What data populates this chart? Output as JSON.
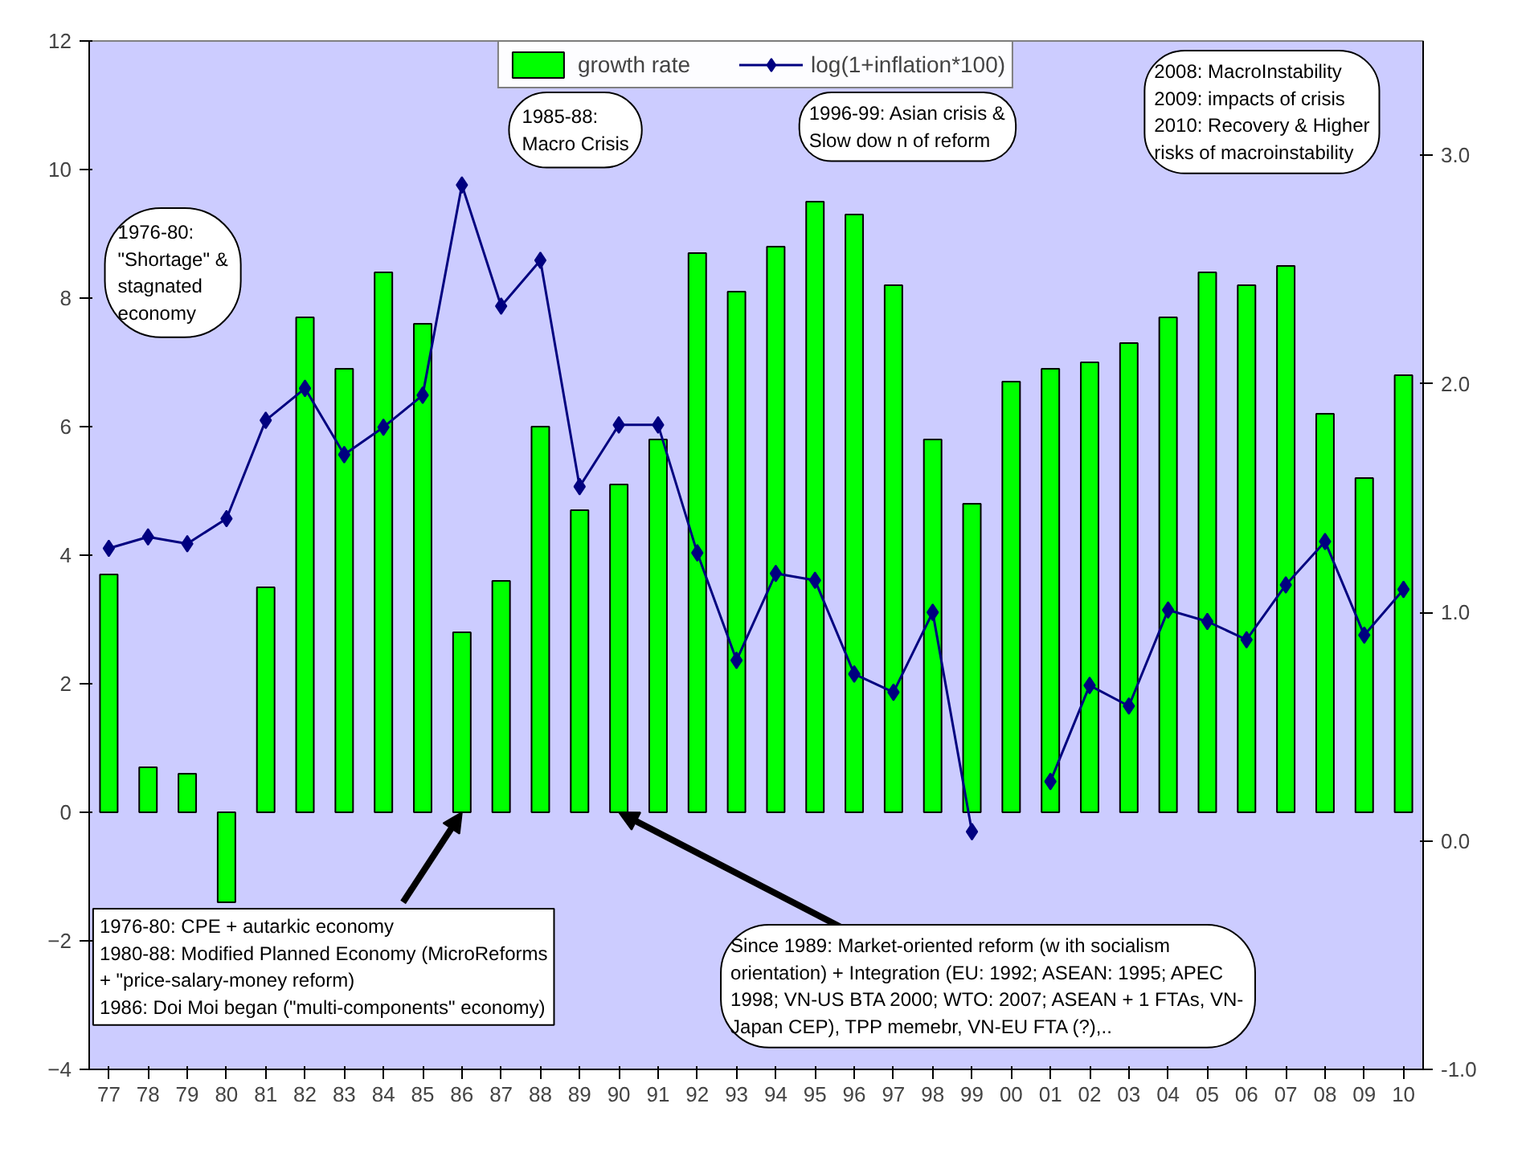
{
  "chart_data": {
    "type": "bar",
    "categories": [
      "77",
      "78",
      "79",
      "80",
      "81",
      "82",
      "83",
      "84",
      "85",
      "86",
      "87",
      "88",
      "89",
      "90",
      "91",
      "92",
      "93",
      "94",
      "95",
      "96",
      "97",
      "98",
      "99",
      "00",
      "01",
      "02",
      "03",
      "04",
      "05",
      "06",
      "07",
      "08",
      "09",
      "10"
    ],
    "series": [
      {
        "name": "growth rate",
        "color": "#00ff00",
        "values": [
          3.7,
          0.7,
          0.6,
          -1.4,
          3.5,
          7.7,
          6.9,
          8.4,
          7.6,
          2.8,
          3.6,
          6.0,
          4.7,
          5.1,
          5.8,
          8.7,
          8.1,
          8.8,
          9.5,
          9.3,
          8.2,
          5.8,
          4.8,
          6.7,
          6.9,
          7.0,
          7.3,
          7.7,
          8.4,
          8.2,
          8.5,
          6.2,
          5.2,
          6.8
        ]
      },
      {
        "name": "log(1+inflation*100)",
        "type": "line",
        "axis": "y2",
        "color": "#000080",
        "marker": "diamond",
        "values": [
          1.28,
          1.33,
          1.3,
          1.41,
          1.84,
          1.98,
          1.69,
          1.81,
          1.95,
          2.87,
          2.34,
          2.54,
          1.55,
          1.82,
          1.82,
          1.26,
          0.79,
          1.17,
          1.14,
          0.73,
          0.65,
          1.0,
          0.04,
          null,
          0.26,
          0.68,
          0.59,
          1.01,
          0.96,
          0.88,
          1.12,
          1.31,
          0.9,
          1.1
        ]
      }
    ],
    "ylim": [
      -4,
      12
    ],
    "yticks": [
      -4,
      -2,
      0,
      2,
      4,
      6,
      8,
      10,
      12
    ],
    "y2lim": [
      -1,
      3.5
    ],
    "y2ticks": [
      {
        "value": -1,
        "label": "-1.0"
      },
      {
        "value": 0,
        "label": "0.0"
      },
      {
        "value": 1,
        "label": "1.0"
      },
      {
        "value": 2,
        "label": "2.0"
      },
      {
        "value": 3,
        "label": "3.0"
      }
    ],
    "grid": false,
    "legend": "top",
    "annotations": [
      "1976-80:\n\"Shortage\" &\nstagnated\neconomy",
      "1985-88:\nMacro Crisis",
      "1996-99: Asian crisis &\nSlow dow n of reform",
      "2008: MacroInstability\n2009: impacts of crisis\n2010: Recovery & Higher\nrisks of macroinstability",
      {
        "text": "1976-80: CPE + autarkic economy\n1980-88: Modified Planned Economy (MicroReforms\n+ \"price-salary-money reform)\n1986: Doi Moi began (\"multi-components\" economy)",
        "x": "86",
        "y": 0
      },
      {
        "text": "Since 1989: Market-oriented reform (w ith socialism\norientation) + Integration (EU: 1992; ASEAN: 1995; APEC\n1998; VN-US BTA 2000; WTO: 2007; ASEAN + 1 FTAs, VN-\nJapan CEP), TPP memebr, VN-EU FTA (?),..",
        "x": "90",
        "y": 0
      }
    ]
  }
}
